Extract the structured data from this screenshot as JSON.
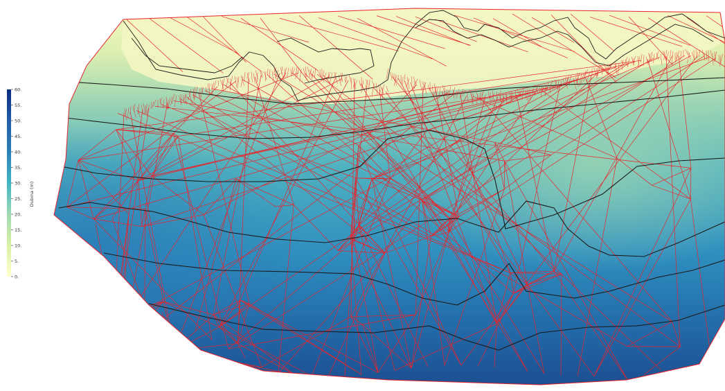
{
  "colorbar": {
    "title": "Dubina (m)",
    "ticks": [
      "60.",
      "55.",
      "50.",
      "45.",
      "40.",
      "35.",
      "30.",
      "25.",
      "20.",
      "15.",
      "10.",
      "5.",
      "0."
    ],
    "range": [
      0,
      60
    ],
    "colormap": [
      "#ffffcc",
      "#c7e9b4",
      "#7fcdbb",
      "#41b6c4",
      "#1d91c0",
      "#225ea8",
      "#0c2c84"
    ]
  },
  "mesh": {
    "edge_color": "#e8242b",
    "contour_color": "#1a1a1a"
  }
}
